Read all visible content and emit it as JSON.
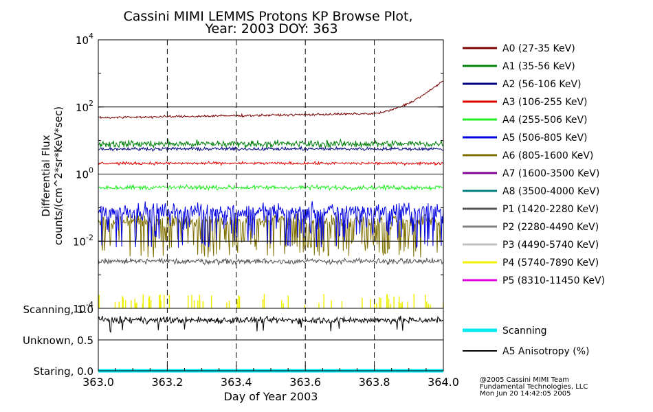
{
  "chart_data": {
    "type": "line",
    "title_line1": "Cassini MIMI LEMMS Protons KP Browse Plot,",
    "title_line2": "Year: 2003 DOY: 363",
    "xlabel": "Day of Year 2003",
    "ylabel_line1": "Differential Flux",
    "ylabel_line2": "counts/(cm^2*sr*KeV*sec)",
    "xlim": [
      363.0,
      364.0
    ],
    "x_ticks": [
      "363.0",
      "363.2",
      "363.4",
      "363.6",
      "363.8",
      "364.0"
    ],
    "y_scale": "log",
    "ylim_exp": [
      -4,
      4
    ],
    "y_ticks": [
      {
        "base": "10",
        "exp": "4"
      },
      {
        "base": "10",
        "exp": "2"
      },
      {
        "base": "10",
        "exp": "0"
      },
      {
        "base": "10",
        "exp": "-2"
      },
      {
        "base": "10",
        "exp": "-4"
      }
    ],
    "series": [
      {
        "name": "A0 (27-35 KeV)",
        "color": "#7a0000",
        "level_log10": 1.68,
        "note": "rises to ~1.5e3 near 364.0"
      },
      {
        "name": "A1 (35-56 KeV)",
        "color": "#00800a",
        "level_log10": 0.9
      },
      {
        "name": "A2 (56-106 KeV)",
        "color": "#000080",
        "level_log10": 0.75
      },
      {
        "name": "A3 (106-255 KeV)",
        "color": "#e00000",
        "level_log10": 0.32
      },
      {
        "name": "A4 (255-506 KeV)",
        "color": "#22ee22",
        "level_log10": -0.4
      },
      {
        "name": "A5 (506-805 KeV)",
        "color": "#0000e0",
        "level_log10": -1.1
      },
      {
        "name": "A6 (805-1600 KeV)",
        "color": "#807000",
        "level_log10": -1.9
      },
      {
        "name": "A7 (1600-3500 KeV)",
        "color": "#800090",
        "level_log10": null
      },
      {
        "name": "A8 (3500-4000 KeV)",
        "color": "#008080",
        "level_log10": null
      },
      {
        "name": "P1 (1420-2280 KeV)",
        "color": "#555555",
        "level_log10": -2.6
      },
      {
        "name": "P2 (2280-4490 KeV)",
        "color": "#808080",
        "level_log10": null
      },
      {
        "name": "P3 (4490-5740 KeV)",
        "color": "#c0c0c0",
        "level_log10": null
      },
      {
        "name": "P4 (5740-7890 KeV)",
        "color": "#f0f000",
        "level_log10": -3.8
      },
      {
        "name": "P5 (8310-11450 KeV)",
        "color": "#e000e0",
        "level_log10": null
      }
    ],
    "lower_panel": {
      "y_labels": [
        "Scanning, 1.0",
        "Unknown, 0.5",
        "Staring, 0.0"
      ],
      "series": [
        {
          "name": "Scanning",
          "color": "#00e8f0",
          "value": 0.0
        },
        {
          "name": "A5 Anisotropy (%)",
          "color": "#000000",
          "value": 0.82
        }
      ]
    }
  },
  "credits": {
    "line1": "@2005 Cassini MIMI Team",
    "line2": "Fundamental Technologies, LLC",
    "line3": "Mon Jun 20 14:42:05 2005"
  }
}
